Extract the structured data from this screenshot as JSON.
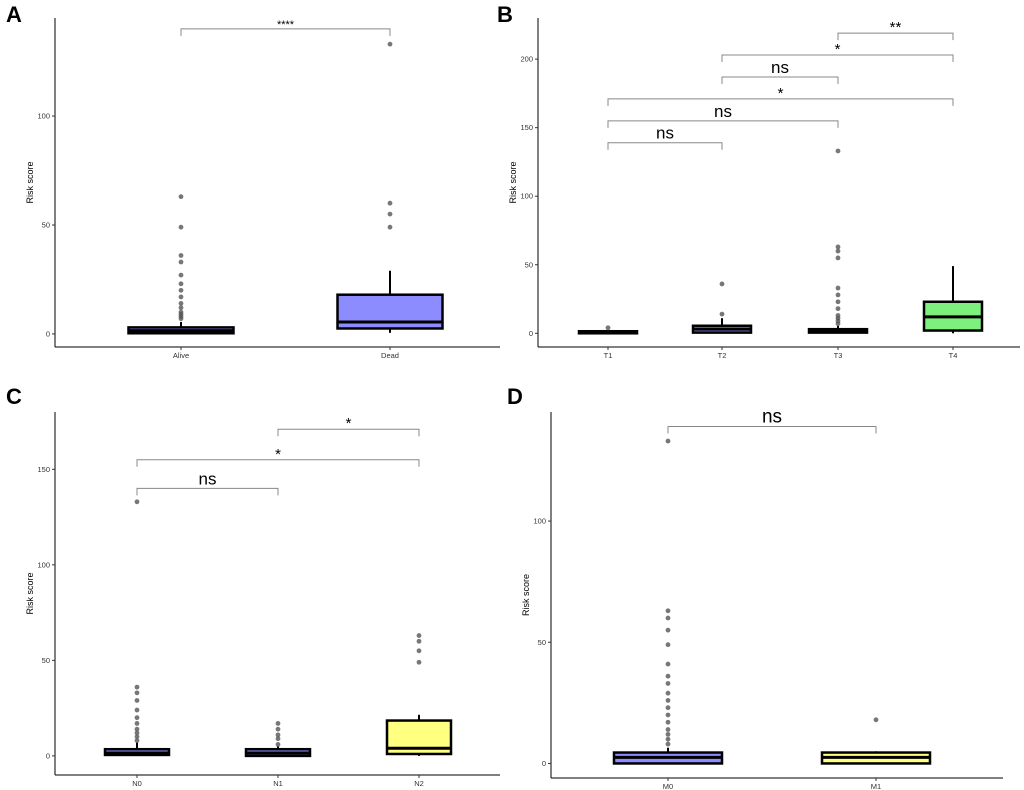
{
  "chart_data": [
    {
      "panel": "A",
      "type": "box",
      "ylabel": "Risk score",
      "xlabel": "",
      "ylim": [
        -6,
        145
      ],
      "yticks": [
        0,
        50,
        100
      ],
      "categories": [
        "Alive",
        "Dead"
      ],
      "boxes": [
        {
          "name": "Alive",
          "fill": "#8c8cff",
          "q1": 0.3,
          "median": 1.5,
          "q3": 3.0,
          "whisker_low": 0,
          "whisker_high": 5.5,
          "outliers": [
            7,
            8,
            9,
            10,
            12,
            14,
            17,
            20,
            23,
            27,
            33,
            36,
            49,
            63
          ]
        },
        {
          "name": "Dead",
          "fill": "#8c8cff",
          "q1": 2.5,
          "median": 5.5,
          "q3": 18.0,
          "whisker_low": 0.5,
          "whisker_high": 29.0,
          "outliers": [
            49,
            55,
            60,
            133
          ]
        }
      ],
      "comparisons": [
        {
          "from": 0,
          "to": 1,
          "label": "****",
          "y": 140
        }
      ]
    },
    {
      "panel": "B",
      "type": "box",
      "ylabel": "Risk score",
      "xlabel": "",
      "ylim": [
        -10,
        230
      ],
      "yticks": [
        0,
        50,
        100,
        150,
        200
      ],
      "categories": [
        "T1",
        "T2",
        "T3",
        "T4"
      ],
      "boxes": [
        {
          "name": "T1",
          "fill": "#8c8cff",
          "q1": 0,
          "median": 0.5,
          "q3": 1.5,
          "whisker_low": 0,
          "whisker_high": 2.5,
          "outliers": [
            4
          ]
        },
        {
          "name": "T2",
          "fill": "#8c8cff",
          "q1": 0.5,
          "median": 3.0,
          "q3": 5.5,
          "whisker_low": 0,
          "whisker_high": 11.0,
          "outliers": [
            14,
            36
          ]
        },
        {
          "name": "T3",
          "fill": "#8c8cff",
          "q1": 0.5,
          "median": 1.5,
          "q3": 3.0,
          "whisker_low": 0,
          "whisker_high": 5.5,
          "outliers": [
            7,
            9,
            11,
            13,
            18,
            23,
            28,
            33,
            55,
            60,
            63,
            133
          ]
        },
        {
          "name": "T4",
          "fill": "#7ef07e",
          "q1": 2.0,
          "median": 12.0,
          "q3": 23.0,
          "whisker_low": 0,
          "whisker_high": 49.0,
          "outliers": []
        }
      ],
      "comparisons": [
        {
          "from": 0,
          "to": 1,
          "label": "ns",
          "y": 139
        },
        {
          "from": 0,
          "to": 2,
          "label": "ns",
          "y": 155
        },
        {
          "from": 0,
          "to": 3,
          "label": "*",
          "y": 171
        },
        {
          "from": 1,
          "to": 2,
          "label": "ns",
          "y": 187
        },
        {
          "from": 1,
          "to": 3,
          "label": "*",
          "y": 203
        },
        {
          "from": 2,
          "to": 3,
          "label": "**",
          "y": 219
        }
      ]
    },
    {
      "panel": "C",
      "type": "box",
      "ylabel": "Risk score",
      "xlabel": "",
      "ylim": [
        -10,
        180
      ],
      "yticks": [
        0,
        50,
        100,
        150
      ],
      "categories": [
        "N0",
        "N1",
        "N2"
      ],
      "boxes": [
        {
          "name": "N0",
          "fill": "#8c8cff",
          "q1": 0.5,
          "median": 1.5,
          "q3": 3.5,
          "whisker_low": 0,
          "whisker_high": 7.0,
          "outliers": [
            8,
            10,
            12,
            14,
            17,
            20,
            24,
            29,
            33,
            36,
            133
          ]
        },
        {
          "name": "N1",
          "fill": "#8c8cff",
          "q1": 0,
          "median": 1.5,
          "q3": 3.5,
          "whisker_low": 0,
          "whisker_high": 5.0,
          "outliers": [
            6,
            9,
            11,
            14,
            17
          ]
        },
        {
          "name": "N2",
          "fill": "#ffff80",
          "q1": 1.0,
          "median": 4.0,
          "q3": 18.5,
          "whisker_low": 0,
          "whisker_high": 21.5,
          "outliers": [
            49,
            55,
            60,
            63
          ]
        }
      ],
      "comparisons": [
        {
          "from": 0,
          "to": 1,
          "label": "ns",
          "y": 140
        },
        {
          "from": 0,
          "to": 2,
          "label": "*",
          "y": 155
        },
        {
          "from": 1,
          "to": 2,
          "label": "*",
          "y": 171
        }
      ]
    },
    {
      "panel": "D",
      "type": "box",
      "ylabel": "Risk score",
      "xlabel": "",
      "ylim": [
        -6,
        145
      ],
      "yticks": [
        0,
        50,
        100
      ],
      "categories": [
        "M0",
        "M1"
      ],
      "boxes": [
        {
          "name": "M0",
          "fill": "#8c8cff",
          "q1": 0,
          "median": 2.5,
          "q3": 4.5,
          "whisker_low": 0,
          "whisker_high": 6.5,
          "outliers": [
            8,
            10,
            12,
            14,
            17,
            20,
            23,
            26,
            29,
            33,
            36,
            41,
            49,
            55,
            60,
            63,
            133
          ]
        },
        {
          "name": "M1",
          "fill": "#ffff80",
          "q1": 0,
          "median": 2.5,
          "q3": 4.5,
          "whisker_low": 0,
          "whisker_high": 5.0,
          "outliers": [
            18
          ]
        }
      ],
      "comparisons": [
        {
          "from": 0,
          "to": 1,
          "label": "ns",
          "y": 139
        }
      ]
    }
  ],
  "colors": {
    "blue_box": "#8c8cff",
    "green_box": "#7ef07e",
    "yellow_box": "#ffff80",
    "outlier": "#555555",
    "bracket": "#888888"
  }
}
